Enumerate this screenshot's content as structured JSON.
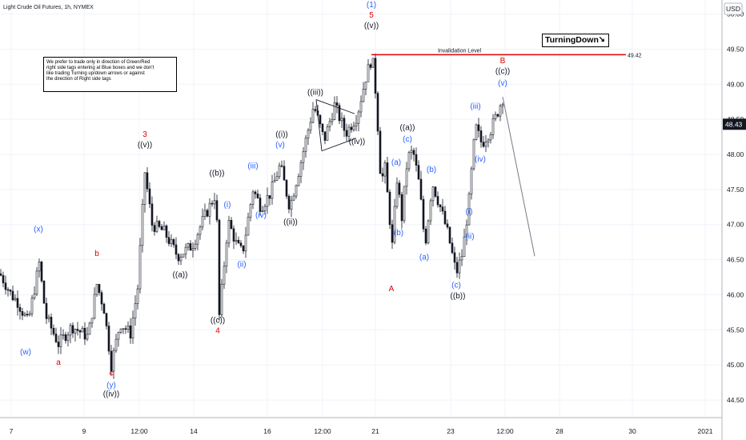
{
  "chart_data": {
    "type": "candlestick",
    "title": "Light Crude Oil Futures, 1h, NYMEX",
    "currency": "USD",
    "ylim": [
      44.25,
      50.2
    ],
    "y_ticks": [
      "50.00",
      "49.50",
      "49.00",
      "48.50",
      "48.00",
      "47.50",
      "47.00",
      "46.50",
      "46.00",
      "45.50",
      "45.00",
      "44.50"
    ],
    "x_ticks": [
      "7",
      "9",
      "12:00",
      "14",
      "16",
      "12:00",
      "21",
      "23",
      "12:00",
      "28",
      "30",
      "2021"
    ],
    "last_price": "48.43",
    "invalidation": {
      "label": "Invalidation Level",
      "value": "49.42"
    },
    "path": [
      [
        0,
        46.3
      ],
      [
        14,
        46.0
      ],
      [
        22,
        45.9
      ],
      [
        35,
        45.6
      ],
      [
        49,
        46.45
      ],
      [
        57,
        45.7
      ],
      [
        73,
        45.3
      ],
      [
        90,
        45.55
      ],
      [
        110,
        45.4
      ],
      [
        121,
        46.15
      ],
      [
        130,
        45.8
      ],
      [
        139,
        45.0
      ],
      [
        150,
        45.6
      ],
      [
        163,
        45.45
      ],
      [
        172,
        46.1
      ],
      [
        181,
        47.75
      ],
      [
        190,
        47.0
      ],
      [
        205,
        46.9
      ],
      [
        222,
        46.55
      ],
      [
        240,
        46.7
      ],
      [
        255,
        47.1
      ],
      [
        270,
        47.45
      ],
      [
        274,
        45.7
      ],
      [
        285,
        47.05
      ],
      [
        296,
        46.7
      ],
      [
        303,
        46.6
      ],
      [
        316,
        47.5
      ],
      [
        326,
        47.25
      ],
      [
        338,
        47.45
      ],
      [
        350,
        47.85
      ],
      [
        362,
        47.25
      ],
      [
        375,
        47.85
      ],
      [
        392,
        48.7
      ],
      [
        405,
        48.2
      ],
      [
        418,
        48.7
      ],
      [
        432,
        48.3
      ],
      [
        446,
        48.55
      ],
      [
        457,
        49.1
      ],
      [
        465,
        49.4
      ],
      [
        470,
        48.8
      ],
      [
        476,
        47.6
      ],
      [
        481,
        47.8
      ],
      [
        490,
        46.7
      ],
      [
        496,
        47.65
      ],
      [
        502,
        47.1
      ],
      [
        509,
        47.95
      ],
      [
        516,
        48.05
      ],
      [
        524,
        47.55
      ],
      [
        531,
        46.7
      ],
      [
        540,
        47.6
      ],
      [
        550,
        47.25
      ],
      [
        560,
        46.85
      ],
      [
        570,
        46.3
      ],
      [
        578,
        46.6
      ],
      [
        586,
        47.35
      ],
      [
        594,
        48.4
      ],
      [
        602,
        48.15
      ],
      [
        613,
        48.35
      ],
      [
        620,
        48.55
      ],
      [
        628,
        48.8
      ]
    ],
    "projection": [
      [
        628,
        48.82
      ],
      [
        668,
        46.55
      ]
    ],
    "wave_labels": [
      {
        "text": "(x)",
        "x": 48,
        "y": 46.9,
        "color": "#2962ff"
      },
      {
        "text": "(w)",
        "x": 32,
        "y": 45.15,
        "color": "#2962ff"
      },
      {
        "text": "a",
        "x": 73,
        "y": 45.0,
        "color": "#e00000"
      },
      {
        "text": "b",
        "x": 121,
        "y": 46.55,
        "color": "#e00000"
      },
      {
        "text": "c",
        "x": 139,
        "y": 44.85,
        "color": "#e00000"
      },
      {
        "text": "(y)",
        "x": 139,
        "y": 44.68,
        "color": "#2962ff"
      },
      {
        "text": "((iv))",
        "x": 139,
        "y": 44.55,
        "color": "#131722"
      },
      {
        "text": "3",
        "x": 181,
        "y": 48.25,
        "color": "#e00000"
      },
      {
        "text": "((v))",
        "x": 181,
        "y": 48.1,
        "color": "#131722"
      },
      {
        "text": "((a))",
        "x": 225,
        "y": 46.25,
        "color": "#131722"
      },
      {
        "text": "((b))",
        "x": 271,
        "y": 47.7,
        "color": "#131722"
      },
      {
        "text": "((c))",
        "x": 272,
        "y": 45.6,
        "color": "#131722"
      },
      {
        "text": "4",
        "x": 272,
        "y": 45.45,
        "color": "#e00000"
      },
      {
        "text": "(i)",
        "x": 284,
        "y": 47.25,
        "color": "#2962ff"
      },
      {
        "text": "(ii)",
        "x": 302,
        "y": 46.4,
        "color": "#2962ff"
      },
      {
        "text": "(iii)",
        "x": 316,
        "y": 47.8,
        "color": "#2962ff"
      },
      {
        "text": "(iv)",
        "x": 326,
        "y": 47.1,
        "color": "#2962ff"
      },
      {
        "text": "(v)",
        "x": 350,
        "y": 48.1,
        "color": "#2962ff"
      },
      {
        "text": "((i))",
        "x": 352,
        "y": 48.25,
        "color": "#131722"
      },
      {
        "text": "((ii))",
        "x": 363,
        "y": 47.0,
        "color": "#131722"
      },
      {
        "text": "((iii))",
        "x": 394,
        "y": 48.85,
        "color": "#131722"
      },
      {
        "text": "((iv))",
        "x": 446,
        "y": 48.15,
        "color": "#131722"
      },
      {
        "text": "(1)",
        "x": 464,
        "y": 50.1,
        "color": "#2962ff"
      },
      {
        "text": "5",
        "x": 464,
        "y": 49.95,
        "color": "#e00000"
      },
      {
        "text": "((v))",
        "x": 464,
        "y": 49.8,
        "color": "#131722"
      },
      {
        "text": "(a)",
        "x": 495,
        "y": 47.85,
        "color": "#2962ff"
      },
      {
        "text": "(b)",
        "x": 498,
        "y": 46.85,
        "color": "#2962ff"
      },
      {
        "text": "A",
        "x": 489,
        "y": 46.05,
        "color": "#e00000"
      },
      {
        "text": "((a))",
        "x": 509,
        "y": 48.35,
        "color": "#131722"
      },
      {
        "text": "(c)",
        "x": 509,
        "y": 48.18,
        "color": "#2962ff"
      },
      {
        "text": "(b)",
        "x": 539,
        "y": 47.75,
        "color": "#2962ff"
      },
      {
        "text": "(a)",
        "x": 530,
        "y": 46.5,
        "color": "#2962ff"
      },
      {
        "text": "(c)",
        "x": 570,
        "y": 46.1,
        "color": "#2962ff"
      },
      {
        "text": "((b))",
        "x": 572,
        "y": 45.95,
        "color": "#131722"
      },
      {
        "text": "(i)",
        "x": 586,
        "y": 47.15,
        "color": "#2962ff"
      },
      {
        "text": "(ii)",
        "x": 587,
        "y": 46.8,
        "color": "#2962ff"
      },
      {
        "text": "(iii)",
        "x": 594,
        "y": 48.65,
        "color": "#2962ff"
      },
      {
        "text": "(iv)",
        "x": 600,
        "y": 47.9,
        "color": "#2962ff"
      },
      {
        "text": "B",
        "x": 628,
        "y": 49.3,
        "color": "#e00000"
      },
      {
        "text": "((c))",
        "x": 628,
        "y": 49.15,
        "color": "#131722"
      },
      {
        "text": "(v)",
        "x": 628,
        "y": 48.98,
        "color": "#2962ff"
      }
    ],
    "triangle": [
      [
        395,
        48.78
      ],
      [
        443,
        48.58
      ],
      [
        445,
        48.23
      ],
      [
        402,
        48.05
      ]
    ]
  },
  "note": {
    "lines": [
      "We prefer to trade only in direction of Green/Red",
      "right side tags entering at Blue boxes and we don't",
      "like trading Turning up/down arrows or against",
      "the direction of Right side tags"
    ]
  },
  "badge": {
    "label": "TurningDown",
    "icon": "turning-down-arrow-icon",
    "arrow_glyph": "↘"
  },
  "colors": {
    "up": "#131722",
    "line": "#e00000",
    "grid": "#f0f3fa",
    "axis": "#b2b5be",
    "projection": "#787b86"
  }
}
